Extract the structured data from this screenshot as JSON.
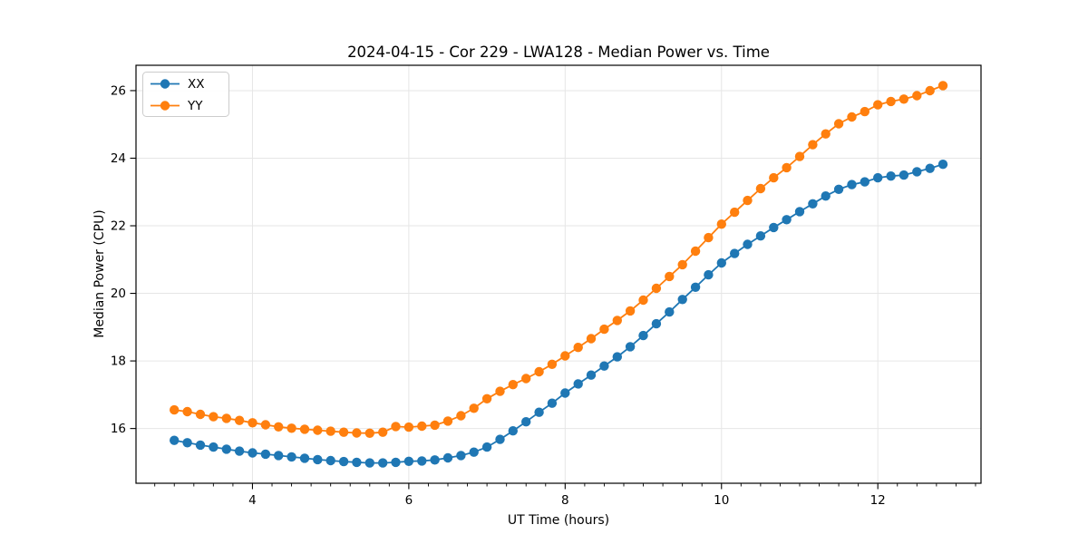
{
  "figure": {
    "background": "#ffffff"
  },
  "chart_data": {
    "type": "line",
    "title": "2024-04-15 - Cor 229 - LWA128 - Median Power vs. Time",
    "xlabel": "UT Time (hours)",
    "ylabel": "Median Power (CPU)",
    "xlim": [
      2.51,
      13.32
    ],
    "ylim": [
      14.38,
      26.75
    ],
    "x_major_ticks": [
      4,
      6,
      8,
      10,
      12
    ],
    "x_minor_tick_step": 0.25,
    "y_major_ticks": [
      16,
      18,
      20,
      22,
      24,
      26
    ],
    "grid": true,
    "grid_color": "#e6e6e6",
    "spine_color": "#000000",
    "legend": {
      "position": "upper-left",
      "entries": [
        "XX",
        "YY"
      ]
    },
    "x_sample_interval_hours": 0.1667,
    "x": [
      3.0,
      3.167,
      3.333,
      3.5,
      3.667,
      3.833,
      4.0,
      4.167,
      4.333,
      4.5,
      4.667,
      4.833,
      5.0,
      5.167,
      5.333,
      5.5,
      5.667,
      5.833,
      6.0,
      6.167,
      6.333,
      6.5,
      6.667,
      6.833,
      7.0,
      7.167,
      7.333,
      7.5,
      7.667,
      7.833,
      8.0,
      8.167,
      8.333,
      8.5,
      8.667,
      8.833,
      9.0,
      9.167,
      9.333,
      9.5,
      9.667,
      9.833,
      10.0,
      10.167,
      10.333,
      10.5,
      10.667,
      10.833,
      11.0,
      11.167,
      11.333,
      11.5,
      11.667,
      11.833,
      12.0,
      12.167,
      12.333,
      12.5,
      12.667,
      12.833
    ],
    "series": [
      {
        "name": "XX",
        "color": "#1f77b4",
        "marker": "circle",
        "values": [
          15.65,
          15.58,
          15.51,
          15.45,
          15.39,
          15.33,
          15.28,
          15.24,
          15.2,
          15.16,
          15.12,
          15.08,
          15.05,
          15.02,
          15.0,
          14.98,
          14.98,
          15.0,
          15.03,
          15.04,
          15.07,
          15.13,
          15.2,
          15.3,
          15.45,
          15.68,
          15.93,
          16.2,
          16.48,
          16.75,
          17.05,
          17.32,
          17.58,
          17.85,
          18.12,
          18.42,
          18.75,
          19.1,
          19.45,
          19.82,
          20.18,
          20.55,
          20.9,
          21.18,
          21.45,
          21.7,
          21.95,
          22.18,
          22.42,
          22.65,
          22.88,
          23.08,
          23.22,
          23.3,
          23.42,
          23.47,
          23.5,
          23.6,
          23.7,
          23.82
        ]
      },
      {
        "name": "YY",
        "color": "#ff7f0e",
        "marker": "circle",
        "values": [
          16.55,
          16.5,
          16.42,
          16.35,
          16.3,
          16.24,
          16.17,
          16.11,
          16.05,
          16.01,
          15.98,
          15.95,
          15.92,
          15.89,
          15.87,
          15.86,
          15.89,
          16.06,
          16.04,
          16.07,
          16.1,
          16.22,
          16.38,
          16.6,
          16.88,
          17.1,
          17.3,
          17.48,
          17.68,
          17.9,
          18.15,
          18.4,
          18.66,
          18.94,
          19.2,
          19.48,
          19.8,
          20.15,
          20.5,
          20.85,
          21.25,
          21.65,
          22.05,
          22.4,
          22.75,
          23.1,
          23.42,
          23.72,
          24.05,
          24.4,
          24.72,
          25.02,
          25.22,
          25.38,
          25.58,
          25.68,
          25.75,
          25.85,
          26.0,
          26.15
        ]
      }
    ]
  }
}
